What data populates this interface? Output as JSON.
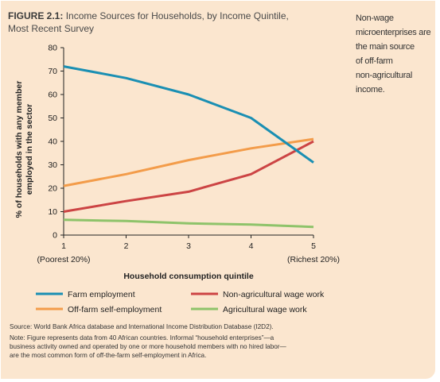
{
  "figure": {
    "number": "FIGURE 2.1:",
    "title_rest": " Income Sources for Households, by Income Quintile,",
    "title_line2": "Most Recent Survey"
  },
  "side_note": {
    "lines": [
      "Non-wage",
      "microenterprises are",
      "the main source",
      "of off-farm",
      "non-agricultural",
      "income."
    ]
  },
  "source": "Source: World Bank Africa database and International Income Distribution Database (I2D2).",
  "note_lines": [
    "Note: Figure represents data from 40 African countries. Informal “household enterprises”—a",
    "business activity owned and operated by one or more household members with no hired labor—",
    "are the most common form of off-the-farm self-employment in Africa."
  ],
  "chart_data": {
    "type": "line",
    "title": "Income Sources for Households, by Income Quintile, Most Recent Survey",
    "xlabel": "Household consumption quintile",
    "ylabel_lines": [
      "% of households with any member",
      "employed in the sector"
    ],
    "x": [
      1,
      2,
      3,
      4,
      5
    ],
    "x_tick_labels": [
      "1",
      "2",
      "3",
      "4",
      "5"
    ],
    "x_sub_labels": [
      "(Poorest 20%)",
      "",
      "",
      "",
      "(Richest 20%)"
    ],
    "ylim": [
      0,
      80
    ],
    "y_ticks": [
      0,
      10,
      20,
      30,
      40,
      50,
      60,
      70,
      80
    ],
    "grid": false,
    "legend_position": "bottom",
    "series": [
      {
        "name": "Farm employment",
        "color": "#1a8fb3",
        "values": [
          72,
          67,
          60,
          50,
          31
        ]
      },
      {
        "name": "Non-agricultural wage work",
        "color": "#cc4444",
        "values": [
          10,
          14.5,
          18.5,
          26,
          40
        ]
      },
      {
        "name": "Off-farm self-employment",
        "color": "#f39c4a",
        "values": [
          21,
          26,
          32,
          37,
          41
        ]
      },
      {
        "name": "Agricultural wage work",
        "color": "#8ec36a",
        "values": [
          6.5,
          6,
          5,
          4.5,
          3.5
        ]
      }
    ]
  }
}
